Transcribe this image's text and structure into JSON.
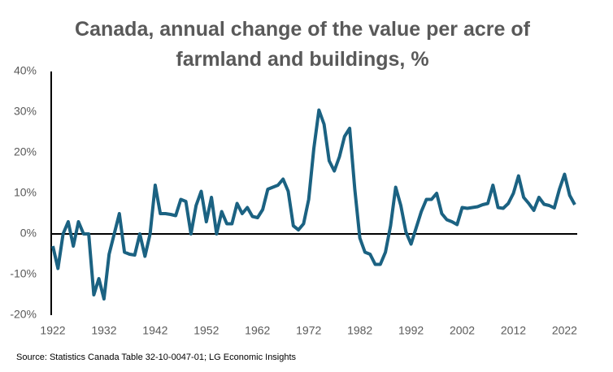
{
  "chart_data": {
    "type": "line",
    "title": "Canada, annual change of the value per acre of farmland and buildings, %",
    "source": "Source: Statistics Canada Table 32-10-0047-01; LG Economic Insights",
    "x": [
      1922,
      1923,
      1924,
      1925,
      1926,
      1927,
      1928,
      1929,
      1930,
      1931,
      1932,
      1933,
      1934,
      1935,
      1936,
      1937,
      1938,
      1939,
      1940,
      1941,
      1942,
      1943,
      1944,
      1945,
      1946,
      1947,
      1948,
      1949,
      1950,
      1951,
      1952,
      1953,
      1954,
      1955,
      1956,
      1957,
      1958,
      1959,
      1960,
      1961,
      1962,
      1963,
      1964,
      1965,
      1966,
      1967,
      1968,
      1969,
      1970,
      1971,
      1972,
      1973,
      1974,
      1975,
      1976,
      1977,
      1978,
      1979,
      1980,
      1981,
      1982,
      1983,
      1984,
      1985,
      1986,
      1987,
      1988,
      1989,
      1990,
      1991,
      1992,
      1993,
      1994,
      1995,
      1996,
      1997,
      1998,
      1999,
      2000,
      2001,
      2002,
      2003,
      2004,
      2005,
      2006,
      2007,
      2008,
      2009,
      2010,
      2011,
      2012,
      2013,
      2014,
      2015,
      2016,
      2017,
      2018,
      2019,
      2020,
      2021,
      2022,
      2023,
      2024
    ],
    "values": [
      -3,
      -8.5,
      0,
      3,
      -3,
      3,
      0,
      0,
      -15,
      -11,
      -16,
      -5,
      0,
      5,
      -4.5,
      -5,
      -5.2,
      0,
      -5.5,
      0,
      12,
      5,
      5,
      4.8,
      4.5,
      8.5,
      8,
      0,
      7,
      10.5,
      3,
      9,
      0,
      5.5,
      2.5,
      2.5,
      7.5,
      5,
      6.5,
      4.3,
      4,
      6,
      11,
      11.5,
      12,
      13.5,
      10.5,
      2,
      1,
      2.5,
      8.5,
      21,
      30.5,
      27,
      18,
      15.5,
      19,
      24,
      26,
      11,
      -1,
      -4.5,
      -5,
      -7.5,
      -7.5,
      -4.5,
      2,
      11.5,
      7,
      0.5,
      -2.5,
      1.5,
      5.5,
      8.5,
      8.5,
      10,
      5,
      3.5,
      3,
      2.3,
      6.5,
      6.3,
      6.5,
      6.7,
      7.2,
      7.5,
      12,
      6.5,
      6.3,
      7.5,
      10,
      14.3,
      9,
      7.5,
      5.8,
      9,
      7.3,
      7,
      6.4,
      11,
      14.7,
      9.5,
      7.2
    ],
    "color": "#1b6282",
    "xlim": [
      1922,
      2024
    ],
    "xticks": [
      1922,
      1932,
      1942,
      1952,
      1962,
      1972,
      1982,
      1992,
      2002,
      2012,
      2022
    ],
    "ylim": [
      -20,
      40
    ],
    "yticks": [
      {
        "value": -20,
        "label": "-20%"
      },
      {
        "value": -10,
        "label": "-10%"
      },
      {
        "value": 0,
        "label": "0%"
      },
      {
        "value": 10,
        "label": "10%"
      },
      {
        "value": 20,
        "label": "20%"
      },
      {
        "value": 30,
        "label": "30%"
      },
      {
        "value": 40,
        "label": "40%"
      }
    ],
    "grid": false
  }
}
